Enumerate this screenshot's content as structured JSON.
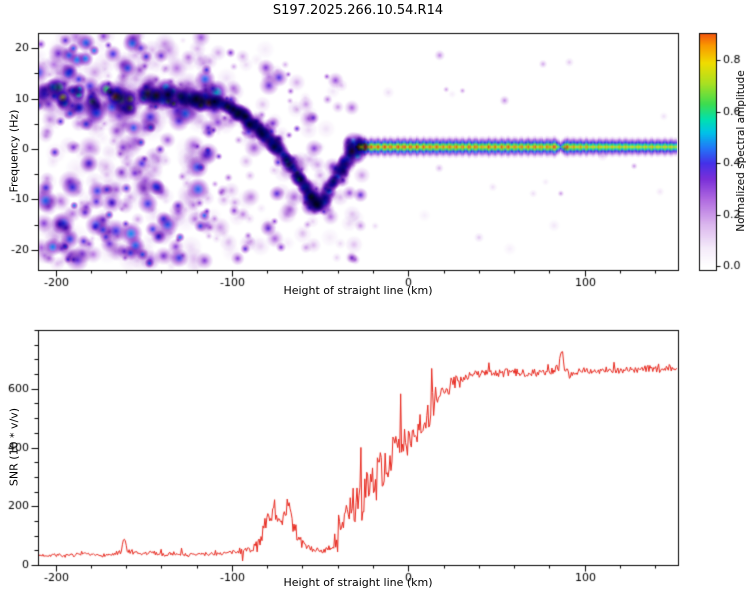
{
  "title": "S197.2025.266.10.54.R14",
  "background_color": "#ffffff",
  "axis_color": "#000000",
  "chart_data": [
    {
      "type": "heatmap",
      "title": "S197.2025.266.10.54.R14",
      "xlabel": "Height of straight line (km)",
      "ylabel": "Frequency (Hz)",
      "xlim": [
        -210,
        153
      ],
      "ylim": [
        -24,
        23
      ],
      "xticks": [
        -200,
        -100,
        0,
        100
      ],
      "yticks": [
        20,
        10,
        0,
        -10,
        -20
      ],
      "x_minor_step": 20,
      "y_minor_step": 5,
      "colorbar": {
        "label": "Normalized spectral amplitude",
        "ticks": [
          0,
          0.2,
          0.4,
          0.6,
          0.8
        ],
        "vmin": 0,
        "vmax": 0.905
      },
      "colormap_stops": [
        [
          0.0,
          "#ffffff"
        ],
        [
          0.07,
          "#f5ecfa"
        ],
        [
          0.16,
          "#dcb8ee"
        ],
        [
          0.26,
          "#b06ae0"
        ],
        [
          0.34,
          "#7a2fd8"
        ],
        [
          0.4,
          "#4530e8"
        ],
        [
          0.46,
          "#2277f8"
        ],
        [
          0.52,
          "#00c3e8"
        ],
        [
          0.57,
          "#00e0b0"
        ],
        [
          0.63,
          "#3cdc50"
        ],
        [
          0.71,
          "#a8e022"
        ],
        [
          0.79,
          "#f0dc00"
        ],
        [
          0.86,
          "#fa9600"
        ],
        [
          0.92,
          "#f03c14"
        ],
        [
          1.0,
          "#c80028"
        ]
      ],
      "seed": 42,
      "noise_regions": [
        {
          "x0": -210,
          "x1": -112,
          "f0": -23.5,
          "f1": 22.5,
          "count": 430,
          "rmin": 1.8,
          "rmax": 6.5,
          "amax": 0.42
        },
        {
          "x0": -210,
          "x1": -108,
          "f0": 7.5,
          "f1": 12.5,
          "count": 120,
          "rmin": 2.5,
          "rmax": 7,
          "amax": 0.6
        },
        {
          "x0": -112,
          "x1": -58,
          "f0": -22,
          "f1": 20,
          "count": 110,
          "rmin": 1.8,
          "rmax": 5.5,
          "amax": 0.32
        },
        {
          "x0": -58,
          "x1": -26,
          "f0": -22,
          "f1": 16,
          "count": 55,
          "rmin": 1.8,
          "rmax": 5,
          "amax": 0.3
        },
        {
          "x0": -26,
          "x1": 152,
          "f0": -22,
          "f1": 20,
          "count": 24,
          "rmin": 1.5,
          "rmax": 3.5,
          "amax": 0.16
        }
      ],
      "bright_blobs": [
        [
          -196,
          10.2,
          0.7,
          5.5
        ],
        [
          -187,
          10.8,
          0.58,
          4.5
        ],
        [
          -179,
          9.4,
          0.62,
          5
        ],
        [
          -166,
          10.4,
          0.74,
          6
        ],
        [
          -158,
          9.9,
          0.66,
          5
        ],
        [
          -150,
          10.1,
          0.58,
          4.5
        ],
        [
          -143,
          10.6,
          0.7,
          5.5
        ],
        [
          -136,
          9.5,
          0.62,
          4.5
        ],
        [
          -128,
          10.1,
          0.58,
          4.5
        ],
        [
          -120,
          9.9,
          0.66,
          5.5
        ],
        [
          -113,
          9.2,
          0.7,
          5.5
        ],
        [
          -97,
          6.8,
          0.6,
          4.5
        ],
        [
          -90,
          4.8,
          0.64,
          4.5
        ],
        [
          -83,
          3.0,
          0.6,
          4
        ],
        [
          -76,
          0.4,
          0.62,
          4.5
        ],
        [
          -69,
          -2.2,
          0.6,
          4
        ],
        [
          -62,
          -5.8,
          0.62,
          4.5
        ],
        [
          -55,
          -9.6,
          0.66,
          5
        ],
        [
          -52,
          -11.0,
          0.62,
          4.5
        ],
        [
          -31,
          1.2,
          0.5,
          6
        ],
        [
          -29,
          -1.2,
          0.55,
          5
        ],
        [
          -27,
          0.4,
          0.72,
          5.5
        ]
      ],
      "track": [
        [
          -110,
          9.5,
          0.6
        ],
        [
          -104,
          8.6,
          0.58
        ],
        [
          -99,
          7.8,
          0.62
        ],
        [
          -94,
          6.6,
          0.58
        ],
        [
          -90,
          5.4,
          0.6
        ],
        [
          -86,
          4.4,
          0.56
        ],
        [
          -82,
          3.2,
          0.6
        ],
        [
          -78,
          1.8,
          0.58
        ],
        [
          -74,
          0.2,
          0.6
        ],
        [
          -70,
          -1.6,
          0.56
        ],
        [
          -66,
          -3.6,
          0.58
        ],
        [
          -62,
          -5.6,
          0.6
        ],
        [
          -58,
          -7.8,
          0.58
        ],
        [
          -54,
          -9.8,
          0.6
        ],
        [
          -51,
          -11.2,
          0.62
        ],
        [
          -48,
          -10.2,
          0.55
        ],
        [
          -45,
          -8.4,
          0.52
        ],
        [
          -42,
          -6.4,
          0.55
        ],
        [
          -39,
          -4.4,
          0.52
        ],
        [
          -36,
          -2.6,
          0.56
        ],
        [
          -33,
          -1.2,
          0.6
        ],
        [
          -30,
          -0.2,
          0.66
        ]
      ],
      "track_scatter_count": 150,
      "line_freq": 0.4,
      "line_profile": [
        [
          -30,
          0.72
        ],
        [
          -28,
          0.88
        ],
        [
          -26,
          0.95
        ],
        [
          -23,
          0.9
        ],
        [
          -20,
          0.93
        ],
        [
          -16,
          0.9
        ],
        [
          -12,
          0.92
        ],
        [
          -8,
          0.9
        ],
        [
          -4,
          0.93
        ],
        [
          0,
          0.91
        ],
        [
          5,
          0.93
        ],
        [
          10,
          0.9
        ],
        [
          15,
          0.92
        ],
        [
          20,
          0.9
        ],
        [
          25,
          0.91
        ],
        [
          30,
          0.89
        ],
        [
          35,
          0.92
        ],
        [
          40,
          0.88
        ],
        [
          45,
          0.91
        ],
        [
          50,
          0.89
        ],
        [
          55,
          0.92
        ],
        [
          60,
          0.9
        ],
        [
          65,
          0.88
        ],
        [
          70,
          0.91
        ],
        [
          75,
          0.89
        ],
        [
          80,
          0.92
        ],
        [
          84,
          0.94
        ],
        [
          86,
          0.5
        ],
        [
          88,
          0.92
        ],
        [
          92,
          0.88
        ],
        [
          96,
          0.85
        ],
        [
          100,
          0.86
        ],
        [
          105,
          0.84
        ],
        [
          110,
          0.85
        ],
        [
          115,
          0.83
        ],
        [
          120,
          0.84
        ],
        [
          125,
          0.82
        ],
        [
          130,
          0.83
        ],
        [
          135,
          0.82
        ],
        [
          140,
          0.83
        ],
        [
          145,
          0.82
        ],
        [
          152,
          0.83
        ]
      ]
    },
    {
      "type": "line",
      "xlabel": "Height of straight line (km)",
      "ylabel": "SNR (10 * v/v)",
      "xlim": [
        -210,
        153
      ],
      "ylim": [
        0,
        800
      ],
      "xticks": [
        -200,
        -100,
        0,
        100
      ],
      "yticks": [
        0,
        200,
        400,
        600
      ],
      "x_minor_step": 20,
      "y_minor_step": 50,
      "line_color": "#e8281e",
      "seed": 7,
      "anchors": [
        [
          -210,
          32
        ],
        [
          -200,
          34
        ],
        [
          -193,
          30
        ],
        [
          -186,
          36
        ],
        [
          -178,
          32
        ],
        [
          -170,
          34
        ],
        [
          -163,
          38
        ],
        [
          -161,
          88
        ],
        [
          -159,
          44
        ],
        [
          -152,
          36
        ],
        [
          -145,
          42
        ],
        [
          -138,
          34
        ],
        [
          -131,
          40
        ],
        [
          -124,
          34
        ],
        [
          -117,
          36
        ],
        [
          -110,
          38
        ],
        [
          -103,
          40
        ],
        [
          -97,
          44
        ],
        [
          -91,
          50
        ],
        [
          -87,
          60
        ],
        [
          -84,
          95
        ],
        [
          -81,
          130
        ],
        [
          -78,
          165
        ],
        [
          -76,
          200
        ],
        [
          -74,
          150
        ],
        [
          -72,
          120
        ],
        [
          -70,
          160
        ],
        [
          -68,
          210
        ],
        [
          -66,
          140
        ],
        [
          -64,
          110
        ],
        [
          -61,
          85
        ],
        [
          -58,
          62
        ],
        [
          -54,
          52
        ],
        [
          -50,
          48
        ],
        [
          -46,
          50
        ],
        [
          -43,
          55
        ],
        [
          -40,
          75
        ],
        [
          -38,
          130
        ],
        [
          -36,
          170
        ],
        [
          -34,
          140
        ],
        [
          -32,
          200
        ],
        [
          -30,
          170
        ],
        [
          -28,
          230
        ],
        [
          -26,
          200
        ],
        [
          -24,
          270
        ],
        [
          -22,
          240
        ],
        [
          -20,
          300
        ],
        [
          -18,
          280
        ],
        [
          -16,
          330
        ],
        [
          -14,
          310
        ],
        [
          -12,
          360
        ],
        [
          -10,
          340
        ],
        [
          -8,
          390
        ],
        [
          -6,
          370
        ],
        [
          -4,
          410
        ],
        [
          -2,
          395
        ],
        [
          0,
          430
        ],
        [
          2,
          450
        ],
        [
          4,
          440
        ],
        [
          6,
          470
        ],
        [
          8,
          490
        ],
        [
          10,
          480
        ],
        [
          12,
          510
        ],
        [
          14,
          530
        ],
        [
          16,
          550
        ],
        [
          19,
          575
        ],
        [
          22,
          595
        ],
        [
          25,
          612
        ],
        [
          28,
          625
        ],
        [
          32,
          638
        ],
        [
          36,
          646
        ],
        [
          40,
          650
        ],
        [
          46,
          654
        ],
        [
          52,
          650
        ],
        [
          58,
          655
        ],
        [
          64,
          651
        ],
        [
          70,
          656
        ],
        [
          76,
          652
        ],
        [
          82,
          658
        ],
        [
          85,
          664
        ],
        [
          87,
          720
        ],
        [
          89,
          665
        ],
        [
          92,
          650
        ],
        [
          96,
          658
        ],
        [
          100,
          662
        ],
        [
          106,
          658
        ],
        [
          112,
          664
        ],
        [
          118,
          660
        ],
        [
          124,
          665
        ],
        [
          130,
          662
        ],
        [
          136,
          668
        ],
        [
          142,
          664
        ],
        [
          148,
          668
        ],
        [
          152,
          666
        ]
      ],
      "noise_profile": [
        [
          -210,
          -166,
          12
        ],
        [
          -166,
          -156,
          22
        ],
        [
          -156,
          -96,
          13
        ],
        [
          -96,
          -86,
          26
        ],
        [
          -86,
          -60,
          60
        ],
        [
          -60,
          -42,
          18
        ],
        [
          -42,
          -34,
          85
        ],
        [
          -34,
          -20,
          120
        ],
        [
          -20,
          0,
          135
        ],
        [
          0,
          14,
          110
        ],
        [
          14,
          30,
          55
        ],
        [
          30,
          83,
          28
        ],
        [
          83,
          92,
          40
        ],
        [
          92,
          153,
          22
        ]
      ]
    }
  ]
}
